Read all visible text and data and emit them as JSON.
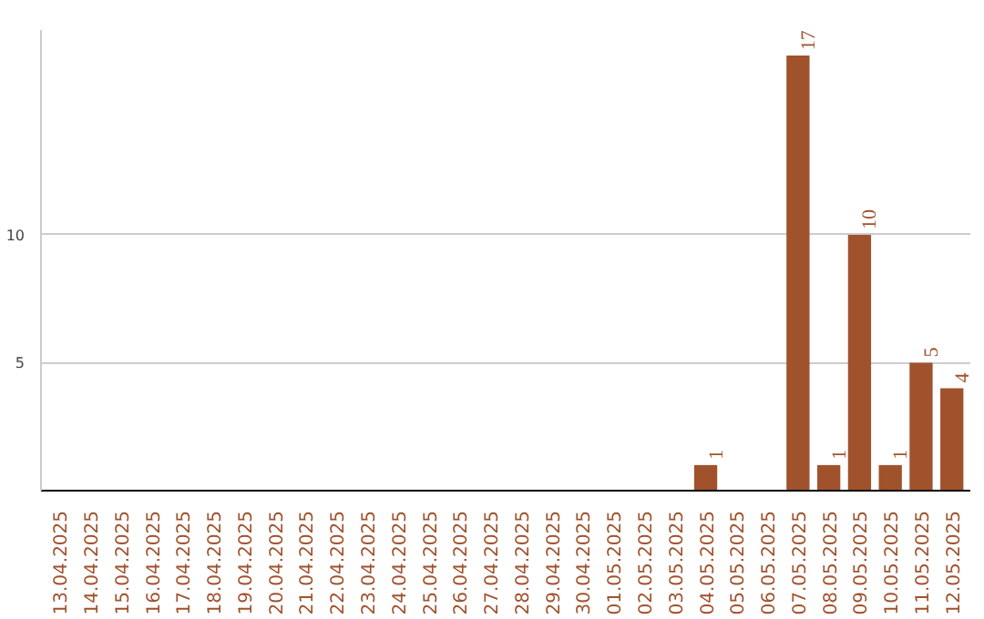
{
  "chart_data": {
    "type": "bar",
    "categories": [
      "13.04.2025",
      "14.04.2025",
      "15.04.2025",
      "16.04.2025",
      "17.04.2025",
      "18.04.2025",
      "19.04.2025",
      "20.04.2025",
      "21.04.2025",
      "22.04.2025",
      "23.04.2025",
      "24.04.2025",
      "25.04.2025",
      "26.04.2025",
      "27.04.2025",
      "28.04.2025",
      "29.04.2025",
      "30.04.2025",
      "01.05.2025",
      "02.05.2025",
      "03.05.2025",
      "04.05.2025",
      "05.05.2025",
      "06.05.2025",
      "07.05.2025",
      "08.05.2025",
      "09.05.2025",
      "10.05.2025",
      "11.05.2025",
      "12.05.2025"
    ],
    "values": [
      0,
      0,
      0,
      0,
      0,
      0,
      0,
      0,
      0,
      0,
      0,
      0,
      0,
      0,
      0,
      0,
      0,
      0,
      0,
      0,
      0,
      1,
      0,
      0,
      17,
      1,
      10,
      1,
      5,
      4
    ],
    "value_labels": [
      null,
      null,
      null,
      null,
      null,
      null,
      null,
      null,
      null,
      null,
      null,
      null,
      null,
      null,
      null,
      null,
      null,
      null,
      null,
      null,
      null,
      "1",
      null,
      null,
      "17",
      "1",
      "10",
      "1",
      "5",
      "4"
    ],
    "color": "#a0522d",
    "ylim": [
      0,
      18
    ],
    "yticks": [
      5,
      10
    ],
    "grid": "y"
  }
}
